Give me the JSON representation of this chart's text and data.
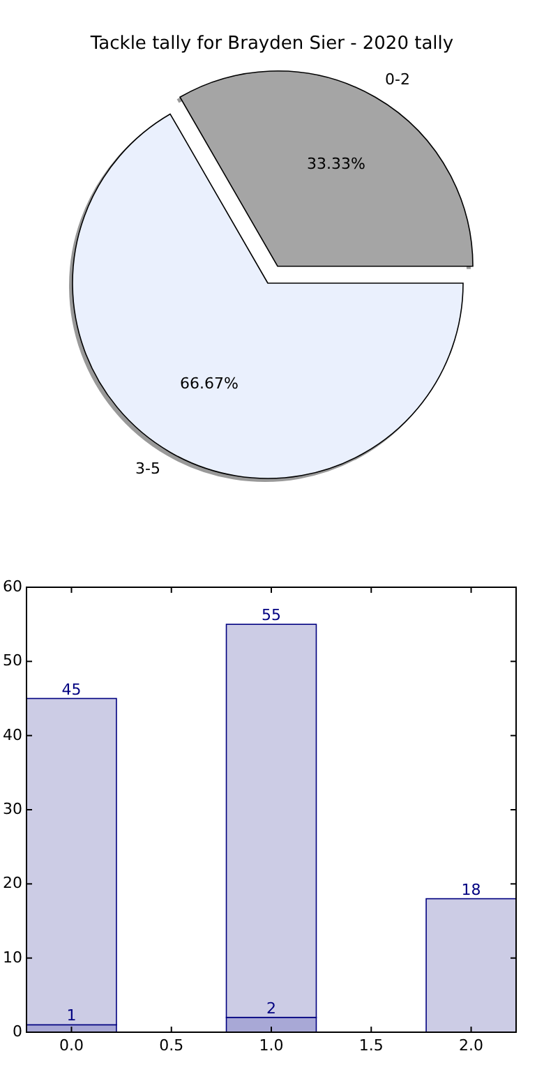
{
  "chart_data": [
    {
      "type": "pie",
      "title": "Tackle tally for Brayden Sier - 2020 tally",
      "categories": [
        "0-2",
        "3-5"
      ],
      "values": [
        33.33,
        66.67
      ],
      "value_labels": [
        "33.33%",
        "66.67%"
      ],
      "colors": [
        "#a5a5a5",
        "#eaf0fd"
      ]
    },
    {
      "type": "bar",
      "x": [
        0,
        1,
        2
      ],
      "stacked": true,
      "series": [
        {
          "color": "#a8a8d6",
          "values": [
            1,
            2,
            null
          ],
          "value_labels": [
            "1",
            "2",
            null
          ]
        },
        {
          "color": "#cccce5",
          "values": [
            44,
            53,
            18
          ]
        }
      ],
      "totals": [
        "45",
        "55",
        "18"
      ],
      "xlim": [
        -0.225,
        2.225
      ],
      "xticks": [
        {
          "value": 0,
          "label": "0.0"
        },
        {
          "value": 0.5,
          "label": "0.5"
        },
        {
          "value": 1,
          "label": "1.0"
        },
        {
          "value": 1.5,
          "label": "1.5"
        },
        {
          "value": 2,
          "label": "2.0"
        }
      ],
      "ylim": [
        0,
        60
      ],
      "yticks": [
        0,
        10,
        20,
        30,
        40,
        50,
        60
      ]
    }
  ]
}
